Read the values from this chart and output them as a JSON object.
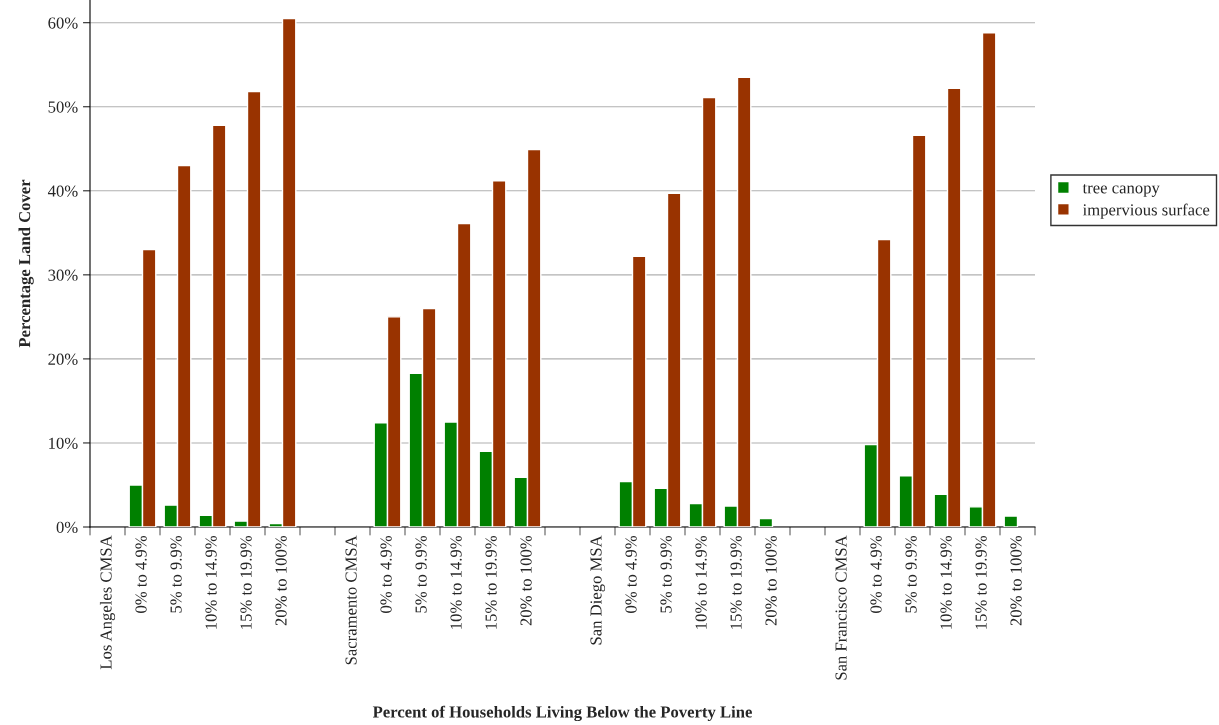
{
  "chart_data": {
    "type": "bar",
    "xlabel": "Percent of Households Living Below the Poverty Line",
    "ylabel": "Percentage Land Cover",
    "categories": [
      "Los Angeles CMSA",
      "0% to 4.9%",
      "5% to 9.9%",
      "10% to 14.9%",
      "15% to 19.9%",
      "20% to 100%",
      null,
      "Sacramento CMSA",
      "0% to 4.9%",
      "5% to 9.9%",
      "10% to 14.9%",
      "15% to 19.9%",
      "20% to 100%",
      null,
      "San Diego MSA",
      "0% to 4.9%",
      "5% to 9.9%",
      "10% to 14.9%",
      "15% to 19.9%",
      "20% to 100%",
      null,
      "San Francisco CMSA",
      "0% to 4.9%",
      "5% to 9.9%",
      "10% to 14.9%",
      "15% to 19.9%",
      "20% to 100%"
    ],
    "series": [
      {
        "name": "tree canopy",
        "color": "#008000",
        "values": [
          null,
          5.0,
          2.6,
          1.4,
          0.7,
          0.4,
          null,
          null,
          12.4,
          18.3,
          12.5,
          9.0,
          5.9,
          null,
          null,
          5.4,
          4.6,
          2.8,
          2.5,
          1.0,
          null,
          null,
          9.8,
          6.1,
          3.9,
          2.4,
          1.3
        ]
      },
      {
        "name": "impervious surface",
        "color": "#993300",
        "values": [
          null,
          33.0,
          43.0,
          47.8,
          51.8,
          60.5,
          null,
          null,
          25.0,
          26.0,
          36.1,
          41.2,
          44.9,
          null,
          null,
          32.2,
          39.7,
          51.1,
          53.5,
          null,
          null,
          null,
          34.2,
          46.6,
          52.2,
          58.8,
          null
        ]
      }
    ],
    "ylim": [
      0,
      62.7
    ],
    "yticks": [
      {
        "value": 0,
        "label": "0%"
      },
      {
        "value": 10,
        "label": "10%"
      },
      {
        "value": 20,
        "label": "20%"
      },
      {
        "value": 30,
        "label": "30%"
      },
      {
        "value": 40,
        "label": "40%"
      },
      {
        "value": 50,
        "label": "50%"
      },
      {
        "value": 60,
        "label": "60%"
      }
    ],
    "grid": "y",
    "legend": "right"
  }
}
